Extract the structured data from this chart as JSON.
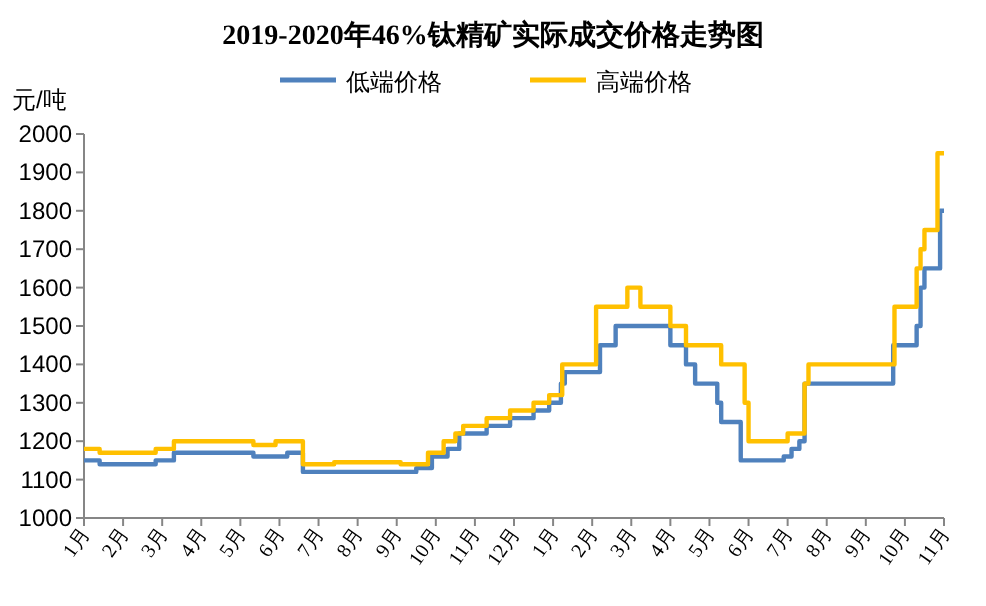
{
  "chart_data": {
    "type": "step",
    "title": "2019-2020年46%钛精矿实际成交价格走势图",
    "ylabel": "元/吨",
    "xlim": [
      "2019-01-01",
      "2020-11-01"
    ],
    "xticks": [
      {
        "value": "2019-01-01",
        "label": "1月"
      },
      {
        "value": "2019-02-01",
        "label": "2月"
      },
      {
        "value": "2019-03-01",
        "label": "3月"
      },
      {
        "value": "2019-04-01",
        "label": "4月"
      },
      {
        "value": "2019-05-01",
        "label": "5月"
      },
      {
        "value": "2019-06-01",
        "label": "6月"
      },
      {
        "value": "2019-07-01",
        "label": "7月"
      },
      {
        "value": "2019-08-01",
        "label": "8月"
      },
      {
        "value": "2019-09-01",
        "label": "9月"
      },
      {
        "value": "2019-10-01",
        "label": "10月"
      },
      {
        "value": "2019-11-01",
        "label": "11月"
      },
      {
        "value": "2019-12-01",
        "label": "12月"
      },
      {
        "value": "2020-01-01",
        "label": "1月"
      },
      {
        "value": "2020-02-01",
        "label": "2月"
      },
      {
        "value": "2020-03-01",
        "label": "3月"
      },
      {
        "value": "2020-04-01",
        "label": "4月"
      },
      {
        "value": "2020-05-01",
        "label": "5月"
      },
      {
        "value": "2020-06-01",
        "label": "6月"
      },
      {
        "value": "2020-07-01",
        "label": "7月"
      },
      {
        "value": "2020-08-01",
        "label": "8月"
      },
      {
        "value": "2020-09-01",
        "label": "9月"
      },
      {
        "value": "2020-10-01",
        "label": "10月"
      },
      {
        "value": "2020-11-01",
        "label": "11月"
      }
    ],
    "ylim": [
      1000,
      2000
    ],
    "yticks": [
      1000,
      1100,
      1200,
      1300,
      1400,
      1500,
      1600,
      1700,
      1800,
      1900,
      2000
    ],
    "grid": false,
    "legend": "top",
    "line_style": "solid",
    "marker": "none",
    "series": [
      {
        "name": "低端价格",
        "color": "#4f81bd",
        "x": [
          "2019-01-01",
          "2019-01-13",
          "2019-02-26",
          "2019-03-10",
          "2019-05-11",
          "2019-06-07",
          "2019-06-19",
          "2019-09-04",
          "2019-09-16",
          "2019-09-28",
          "2019-10-10",
          "2019-10-19",
          "2019-11-10",
          "2019-11-28",
          "2019-12-16",
          "2019-12-28",
          "2020-01-07",
          "2020-01-10",
          "2020-02-07",
          "2020-02-19",
          "2020-04-01",
          "2020-04-13",
          "2020-04-20",
          "2020-05-07",
          "2020-05-10",
          "2020-05-25",
          "2020-06-28",
          "2020-07-04",
          "2020-07-10",
          "2020-07-14",
          "2020-09-22",
          "2020-10-10",
          "2020-10-13",
          "2020-10-16",
          "2020-10-28",
          "2020-11-01"
        ],
        "values": [
          1150,
          1140,
          1150,
          1170,
          1160,
          1170,
          1120,
          1120,
          1130,
          1160,
          1180,
          1220,
          1240,
          1260,
          1280,
          1300,
          1350,
          1380,
          1450,
          1500,
          1450,
          1400,
          1350,
          1300,
          1250,
          1150,
          1160,
          1180,
          1200,
          1350,
          1450,
          1500,
          1600,
          1650,
          1800,
          1800
        ]
      },
      {
        "name": "高端价格",
        "color": "#ffc000",
        "x": [
          "2019-01-01",
          "2019-01-13",
          "2019-02-26",
          "2019-03-10",
          "2019-05-11",
          "2019-05-28",
          "2019-06-19",
          "2019-07-13",
          "2019-09-04",
          "2019-09-25",
          "2019-10-07",
          "2019-10-16",
          "2019-10-22",
          "2019-11-10",
          "2019-11-28",
          "2019-12-16",
          "2019-12-28",
          "2020-01-08",
          "2020-02-04",
          "2020-02-28",
          "2020-03-08",
          "2020-04-01",
          "2020-04-13",
          "2020-05-10",
          "2020-05-28",
          "2020-06-01",
          "2020-07-01",
          "2020-07-14",
          "2020-07-17",
          "2020-09-23",
          "2020-10-10",
          "2020-10-13",
          "2020-10-16",
          "2020-10-26",
          "2020-11-01"
        ],
        "values": [
          1180,
          1170,
          1180,
          1200,
          1190,
          1200,
          1140,
          1145,
          1140,
          1170,
          1200,
          1220,
          1240,
          1260,
          1280,
          1300,
          1320,
          1400,
          1550,
          1600,
          1550,
          1500,
          1450,
          1400,
          1300,
          1200,
          1220,
          1350,
          1400,
          1550,
          1650,
          1700,
          1750,
          1950,
          1950
        ]
      }
    ]
  }
}
